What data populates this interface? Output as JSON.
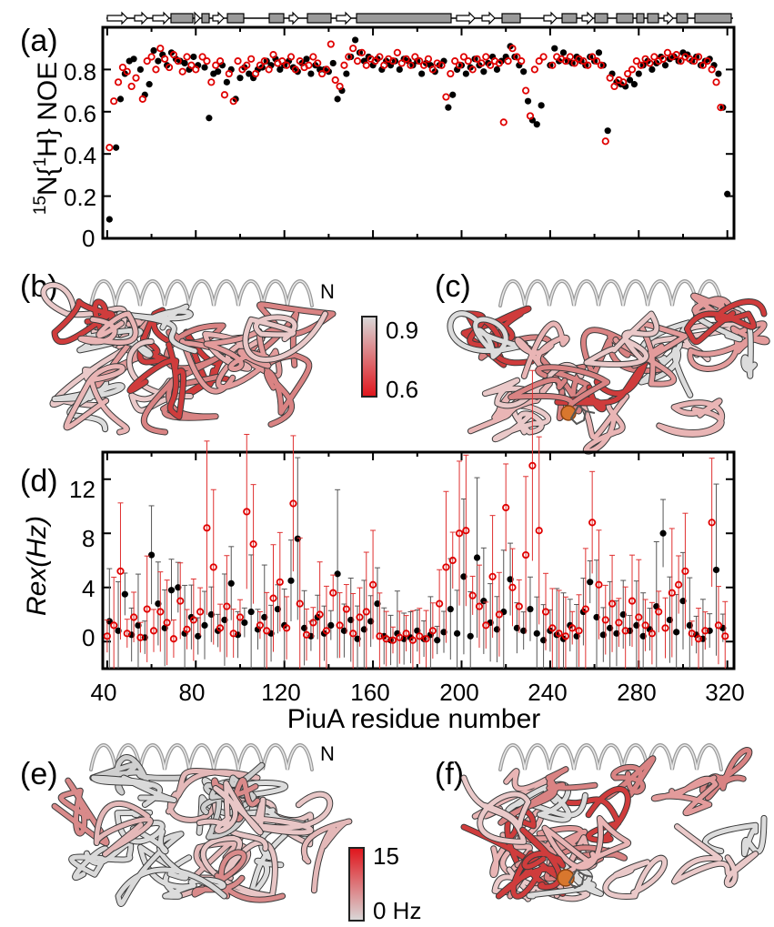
{
  "panels": {
    "a": "(a)",
    "b": "(b)",
    "c": "(c)",
    "d": "(d)",
    "e": "(e)",
    "f": "(f)"
  },
  "structure_labels": {
    "n_terminus_b": "N",
    "n_terminus_e": "N"
  },
  "legend_noe": {
    "high": "0.9",
    "low": "0.6",
    "color_high": "#d9d9d9",
    "color_low": "#e0141b"
  },
  "legend_rex": {
    "high": "15",
    "low": "0 Hz",
    "color_high": "#e0141b",
    "color_low": "#d9d9d9"
  },
  "colors": {
    "series_black": "#000000",
    "series_red": "#e00000",
    "ribbon_pink": "#d98383",
    "ribbon_red": "#cf3c3c",
    "metal": "#d8772e"
  },
  "chart_data": [
    {
      "panel": "(a)",
      "type": "scatter",
      "xlabel": "",
      "ylabel": "15N{1H} NOE",
      "xlim": [
        38,
        323
      ],
      "ylim": [
        0,
        1.0
      ],
      "yticks": [
        "0",
        "0.2",
        "0.4",
        "0.6",
        "0.8"
      ],
      "secondary_structure_track": true,
      "series": [
        {
          "marker": "filled-circle",
          "color": "#000000",
          "x": [
            41,
            44,
            46,
            48,
            50,
            52,
            55,
            57,
            59,
            61,
            63,
            65,
            67,
            69,
            71,
            73,
            75,
            77,
            79,
            81,
            84,
            86,
            88,
            90,
            92,
            94,
            96,
            98,
            100,
            102,
            104,
            106,
            108,
            110,
            112,
            114,
            116,
            118,
            120,
            122,
            124,
            126,
            128,
            130,
            132,
            134,
            136,
            138,
            140,
            142,
            144,
            146,
            148,
            150,
            152,
            154,
            156,
            158,
            160,
            162,
            164,
            166,
            168,
            170,
            172,
            174,
            176,
            178,
            180,
            182,
            184,
            186,
            188,
            190,
            192,
            194,
            196,
            198,
            200,
            202,
            204,
            206,
            208,
            210,
            212,
            214,
            216,
            218,
            220,
            222,
            224,
            226,
            228,
            230,
            232,
            234,
            236,
            240,
            242,
            244,
            246,
            248,
            250,
            252,
            254,
            256,
            258,
            260,
            262,
            264,
            266,
            268,
            270,
            272,
            274,
            276,
            278,
            280,
            282,
            284,
            286,
            288,
            290,
            292,
            294,
            296,
            298,
            300,
            302,
            304,
            306,
            308,
            310,
            312,
            314,
            316,
            318,
            320
          ],
          "y": [
            0.09,
            0.43,
            0.66,
            0.78,
            0.84,
            0.85,
            0.8,
            0.68,
            0.73,
            0.89,
            0.84,
            0.87,
            0.82,
            0.88,
            0.85,
            0.84,
            0.83,
            0.8,
            0.86,
            0.82,
            0.81,
            0.57,
            0.78,
            0.79,
            0.82,
            0.74,
            0.8,
            0.66,
            0.76,
            0.81,
            0.78,
            0.76,
            0.8,
            0.81,
            0.84,
            0.82,
            0.85,
            0.8,
            0.82,
            0.84,
            0.81,
            0.79,
            0.83,
            0.85,
            0.78,
            0.82,
            0.8,
            0.8,
            0.79,
            0.83,
            0.66,
            0.7,
            0.78,
            0.86,
            0.94,
            0.88,
            0.84,
            0.86,
            0.82,
            0.85,
            0.8,
            0.84,
            0.82,
            0.84,
            0.8,
            0.85,
            0.84,
            0.82,
            0.84,
            0.78,
            0.83,
            0.82,
            0.79,
            0.82,
            0.84,
            0.62,
            0.68,
            0.8,
            0.82,
            0.78,
            0.81,
            0.85,
            0.82,
            0.79,
            0.83,
            0.86,
            0.8,
            0.84,
            0.86,
            0.91,
            0.86,
            0.82,
            0.79,
            0.65,
            0.56,
            0.54,
            0.63,
            0.82,
            0.9,
            0.84,
            0.88,
            0.84,
            0.83,
            0.86,
            0.84,
            0.82,
            0.86,
            0.84,
            0.88,
            0.82,
            0.51,
            0.78,
            0.74,
            0.73,
            0.72,
            0.75,
            0.73,
            0.78,
            0.82,
            0.84,
            0.8,
            0.83,
            0.86,
            0.82,
            0.85,
            0.86,
            0.84,
            0.88,
            0.87,
            0.84,
            0.86,
            0.82,
            0.84,
            0.85,
            0.82,
            0.78,
            0.62,
            0.21
          ]
        },
        {
          "marker": "open-circle",
          "color": "#e00000",
          "x": [
            41,
            43,
            45,
            47,
            49,
            51,
            53,
            56,
            58,
            60,
            62,
            64,
            66,
            68,
            70,
            72,
            74,
            76,
            78,
            80,
            83,
            85,
            87,
            89,
            91,
            93,
            95,
            97,
            99,
            101,
            103,
            105,
            107,
            109,
            111,
            113,
            115,
            117,
            119,
            121,
            123,
            125,
            127,
            129,
            131,
            133,
            135,
            137,
            139,
            141,
            143,
            145,
            147,
            149,
            151,
            153,
            155,
            157,
            159,
            161,
            163,
            165,
            167,
            169,
            171,
            173,
            175,
            177,
            179,
            181,
            183,
            185,
            187,
            189,
            191,
            193,
            195,
            197,
            199,
            201,
            203,
            205,
            207,
            209,
            211,
            213,
            215,
            217,
            219,
            221,
            223,
            225,
            227,
            229,
            231,
            233,
            235,
            237,
            241,
            243,
            245,
            247,
            249,
            251,
            253,
            255,
            257,
            259,
            261,
            263,
            265,
            267,
            269,
            271,
            273,
            275,
            277,
            279,
            281,
            283,
            285,
            287,
            289,
            291,
            293,
            295,
            297,
            299,
            301,
            303,
            305,
            307,
            309,
            311,
            313,
            315,
            317
          ],
          "y": [
            0.43,
            0.65,
            0.74,
            0.81,
            0.79,
            0.72,
            0.76,
            0.66,
            0.84,
            0.86,
            0.8,
            0.9,
            0.85,
            0.81,
            0.87,
            0.84,
            0.79,
            0.86,
            0.82,
            0.8,
            0.86,
            0.84,
            0.74,
            0.82,
            0.84,
            0.68,
            0.78,
            0.65,
            0.84,
            0.8,
            0.82,
            0.85,
            0.78,
            0.82,
            0.84,
            0.8,
            0.87,
            0.83,
            0.84,
            0.82,
            0.86,
            0.8,
            0.84,
            0.81,
            0.82,
            0.86,
            0.83,
            0.78,
            0.8,
            0.92,
            0.75,
            0.72,
            0.82,
            0.86,
            0.9,
            0.84,
            0.88,
            0.82,
            0.85,
            0.84,
            0.86,
            0.82,
            0.85,
            0.84,
            0.88,
            0.83,
            0.85,
            0.82,
            0.86,
            0.84,
            0.82,
            0.85,
            0.8,
            0.83,
            0.82,
            0.67,
            0.78,
            0.84,
            0.82,
            0.86,
            0.84,
            0.8,
            0.85,
            0.83,
            0.86,
            0.82,
            0.84,
            0.83,
            0.55,
            0.84,
            0.9,
            0.86,
            0.84,
            0.7,
            0.58,
            0.8,
            0.84,
            0.86,
            0.82,
            0.86,
            0.85,
            0.84,
            0.86,
            0.83,
            0.85,
            0.84,
            0.82,
            0.86,
            0.84,
            0.82,
            0.46,
            0.76,
            0.72,
            0.75,
            0.74,
            0.78,
            0.8,
            0.84,
            0.82,
            0.85,
            0.83,
            0.86,
            0.84,
            0.85,
            0.88,
            0.86,
            0.87,
            0.84,
            0.86,
            0.85,
            0.84,
            0.86,
            0.82,
            0.84,
            0.8,
            0.74,
            0.62
          ]
        }
      ]
    },
    {
      "panel": "(d)",
      "type": "scatter",
      "xlabel": "PiuA residue number",
      "ylabel": "Rex(Hz)",
      "xlim": [
        38,
        323
      ],
      "ylim": [
        -2,
        14
      ],
      "xticks": [
        40,
        80,
        120,
        160,
        200,
        240,
        280,
        320
      ],
      "yticks": [
        0,
        4,
        8,
        12
      ],
      "series": [
        {
          "marker": "filled-circle",
          "color": "#000000",
          "x": [
            41,
            45,
            48,
            51,
            54,
            57,
            60,
            63,
            66,
            69,
            72,
            75,
            78,
            81,
            84,
            87,
            90,
            93,
            96,
            99,
            102,
            105,
            108,
            111,
            114,
            117,
            120,
            123,
            126,
            129,
            132,
            135,
            138,
            141,
            144,
            147,
            150,
            153,
            156,
            159,
            162,
            165,
            168,
            171,
            174,
            177,
            180,
            183,
            186,
            189,
            192,
            195,
            198,
            201,
            204,
            207,
            210,
            213,
            216,
            219,
            222,
            225,
            228,
            231,
            234,
            237,
            240,
            243,
            246,
            249,
            252,
            255,
            258,
            261,
            264,
            267,
            270,
            273,
            276,
            279,
            282,
            285,
            288,
            291,
            294,
            297,
            300,
            303,
            306,
            309,
            312,
            315,
            318
          ],
          "y": [
            1.5,
            0.8,
            3.5,
            0.5,
            1.2,
            0.3,
            6.4,
            2.8,
            1.0,
            3.8,
            4.0,
            0.6,
            1.8,
            0.4,
            1.2,
            2.0,
            0.8,
            1.6,
            4.3,
            0.5,
            1.4,
            2.2,
            0.9,
            1.8,
            0.6,
            2.4,
            1.2,
            4.5,
            7.6,
            1.0,
            0.4,
            1.8,
            0.6,
            1.2,
            5.0,
            0.8,
            1.6,
            0.2,
            0.9,
            1.5,
            2.8,
            0.4,
            0.1,
            0.6,
            0.2,
            0.3,
            0.8,
            0.2,
            0.5,
            0.1,
            0.7,
            2.4,
            0.6,
            4.8,
            0.4,
            6.2,
            3.0,
            1.4,
            0.9,
            2.2,
            4.6,
            1.0,
            0.8,
            2.4,
            0.6,
            0.1,
            0.8,
            0.5,
            0.2,
            1.2,
            0.4,
            2.2,
            4.4,
            1.8,
            0.5,
            1.0,
            0.6,
            2.0,
            0.8,
            1.2,
            0.4,
            0.9,
            2.6,
            8.0,
            1.6,
            0.7,
            3.0,
            1.2,
            0.5,
            0.2,
            0.8,
            5.3,
            1.0
          ]
        },
        {
          "marker": "open-circle",
          "color": "#e00000",
          "x": [
            40,
            43,
            46,
            49,
            52,
            55,
            58,
            61,
            64,
            67,
            70,
            73,
            76,
            79,
            82,
            85,
            88,
            91,
            94,
            97,
            100,
            103,
            106,
            109,
            112,
            115,
            118,
            121,
            124,
            127,
            130,
            133,
            136,
            139,
            142,
            145,
            148,
            151,
            154,
            157,
            160,
            163,
            166,
            169,
            172,
            175,
            178,
            181,
            184,
            187,
            190,
            193,
            196,
            199,
            202,
            205,
            208,
            211,
            214,
            217,
            220,
            223,
            226,
            229,
            232,
            235,
            238,
            241,
            244,
            247,
            250,
            253,
            256,
            259,
            262,
            265,
            268,
            271,
            274,
            277,
            280,
            283,
            286,
            289,
            292,
            295,
            298,
            301,
            304,
            307,
            310,
            313,
            316,
            319
          ],
          "y": [
            0.4,
            1.2,
            5.2,
            0.6,
            1.8,
            0.3,
            2.4,
            0.8,
            2.2,
            1.4,
            0.2,
            3.0,
            0.9,
            1.6,
            2.2,
            8.4,
            5.5,
            1.0,
            2.6,
            0.6,
            1.8,
            9.6,
            7.2,
            1.2,
            0.8,
            3.2,
            4.4,
            1.0,
            10.2,
            2.8,
            0.5,
            1.4,
            2.0,
            0.8,
            3.6,
            1.2,
            2.4,
            0.6,
            1.8,
            2.2,
            4.2,
            0.4,
            0.2,
            0.1,
            0.3,
            0.6,
            0.1,
            0.4,
            0.2,
            0.8,
            2.8,
            5.5,
            6.0,
            8.0,
            8.2,
            3.4,
            2.6,
            1.2,
            4.8,
            2.0,
            9.9,
            4.0,
            2.6,
            6.4,
            13.0,
            8.2,
            2.2,
            1.0,
            0.6,
            0.4,
            1.0,
            0.8,
            2.4,
            8.8,
            4.2,
            1.6,
            2.8,
            1.4,
            0.8,
            3.0,
            1.8,
            1.2,
            0.6,
            2.2,
            1.0,
            3.6,
            4.2,
            5.2,
            0.6,
            0.2,
            0.8,
            8.8,
            1.2,
            0.4
          ]
        }
      ]
    }
  ]
}
